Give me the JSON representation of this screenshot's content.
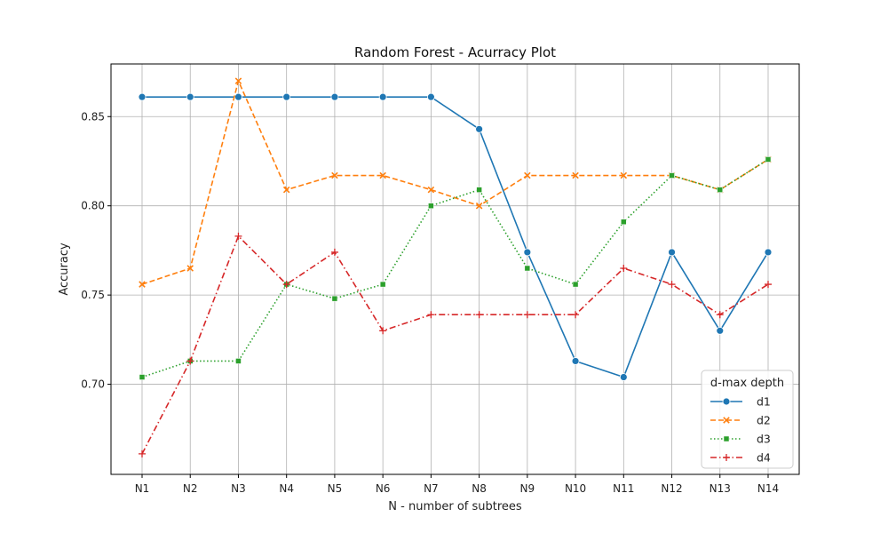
{
  "chart_data": {
    "type": "line",
    "title": "Random Forest - Acurracy Plot",
    "xlabel": "N - number of subtrees",
    "ylabel": "Accuracy",
    "categories": [
      "N1",
      "N2",
      "N3",
      "N4",
      "N5",
      "N6",
      "N7",
      "N8",
      "N9",
      "N10",
      "N11",
      "N12",
      "N13",
      "N14"
    ],
    "ylim": [
      0.6495,
      0.8795
    ],
    "yticks": [
      0.7,
      0.75,
      0.8,
      0.85
    ],
    "ytick_labels": [
      "0.70",
      "0.75",
      "0.80",
      "0.85"
    ],
    "grid": true,
    "legend": {
      "title": "d-max depth",
      "placement": "lower-right"
    },
    "series": [
      {
        "name": "d1",
        "color": "#1f77b4",
        "marker": "circle",
        "dash": "solid",
        "values": [
          0.861,
          0.861,
          0.861,
          0.861,
          0.861,
          0.861,
          0.861,
          0.843,
          0.774,
          0.713,
          0.704,
          0.774,
          0.73,
          0.774
        ]
      },
      {
        "name": "d2",
        "color": "#ff7f0e",
        "marker": "x",
        "dash": "dashed",
        "values": [
          0.756,
          0.765,
          0.87,
          0.809,
          0.817,
          0.817,
          0.809,
          0.8,
          0.817,
          0.817,
          0.817,
          0.817,
          0.809,
          0.826
        ]
      },
      {
        "name": "d3",
        "color": "#2ca02c",
        "marker": "square",
        "dash": "dotted",
        "values": [
          0.704,
          0.713,
          0.713,
          0.756,
          0.748,
          0.756,
          0.8,
          0.809,
          0.765,
          0.756,
          0.791,
          0.817,
          0.809,
          0.826
        ]
      },
      {
        "name": "d4",
        "color": "#d62728",
        "marker": "plus",
        "dash": "dashdot",
        "values": [
          0.661,
          0.713,
          0.783,
          0.756,
          0.774,
          0.73,
          0.739,
          0.739,
          0.739,
          0.739,
          0.765,
          0.756,
          0.739,
          0.756
        ]
      }
    ]
  }
}
